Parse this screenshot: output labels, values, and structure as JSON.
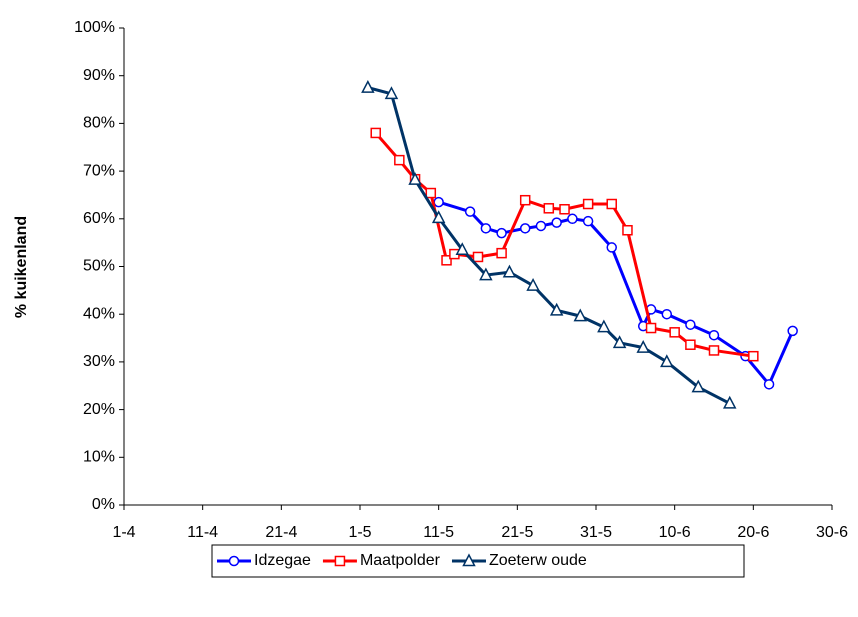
{
  "chart_data": {
    "type": "line",
    "y_label": "% kuikenland",
    "xlim": [
      91,
      181
    ],
    "xticks": [
      {
        "value": 91,
        "label": "1-4"
      },
      {
        "value": 101,
        "label": "11-4"
      },
      {
        "value": 111,
        "label": "21-4"
      },
      {
        "value": 121,
        "label": "1-5"
      },
      {
        "value": 131,
        "label": "11-5"
      },
      {
        "value": 141,
        "label": "21-5"
      },
      {
        "value": 151,
        "label": "31-5"
      },
      {
        "value": 161,
        "label": "10-6"
      },
      {
        "value": 171,
        "label": "20-6"
      },
      {
        "value": 181,
        "label": "30-6"
      }
    ],
    "ylim": [
      0,
      100
    ],
    "yticks": [
      {
        "value": 0,
        "label": "0%"
      },
      {
        "value": 10,
        "label": "10%"
      },
      {
        "value": 20,
        "label": "20%"
      },
      {
        "value": 30,
        "label": "30%"
      },
      {
        "value": 40,
        "label": "40%"
      },
      {
        "value": 50,
        "label": "50%"
      },
      {
        "value": 60,
        "label": "60%"
      },
      {
        "value": 70,
        "label": "70%"
      },
      {
        "value": 80,
        "label": "80%"
      },
      {
        "value": 90,
        "label": "90%"
      },
      {
        "value": 100,
        "label": "100%"
      }
    ],
    "grid": false,
    "legend": "bottom",
    "series": [
      {
        "name": "Idzegae",
        "color": "#0000ff",
        "marker": "circle",
        "x": [
          131,
          135,
          137,
          139,
          142,
          144,
          146,
          148,
          150,
          153,
          157,
          158,
          160,
          163,
          166,
          170,
          173,
          176
        ],
        "values": [
          63.5,
          61.5,
          58,
          57,
          58,
          58.5,
          59.2,
          60,
          59.5,
          54,
          37.5,
          41,
          40,
          37.8,
          35.6,
          31.2,
          25.3,
          36.5
        ]
      },
      {
        "name": "Maatpolder",
        "color": "#ff0000",
        "marker": "square",
        "x": [
          123,
          126,
          128,
          130,
          132,
          133,
          136,
          139,
          142,
          145,
          147,
          150,
          153,
          155,
          158,
          161,
          163,
          166,
          171
        ],
        "values": [
          78,
          72.3,
          68.3,
          65.4,
          51.3,
          52.6,
          52,
          52.8,
          63.9,
          62.2,
          62,
          63.1,
          63.1,
          57.6,
          37.1,
          36.2,
          33.6,
          32.4,
          31.2
        ]
      },
      {
        "name": "Zoeterw oude",
        "color": "#003366",
        "marker": "triangle",
        "x": [
          122,
          125,
          128,
          131,
          134,
          137,
          140,
          143,
          146,
          149,
          152,
          154,
          157,
          160,
          164,
          168
        ],
        "values": [
          87.5,
          86.2,
          68.2,
          60.2,
          53.5,
          48.2,
          48.8,
          46,
          40.8,
          39.6,
          37.3,
          34,
          33,
          30,
          24.7,
          21.3
        ]
      }
    ]
  }
}
